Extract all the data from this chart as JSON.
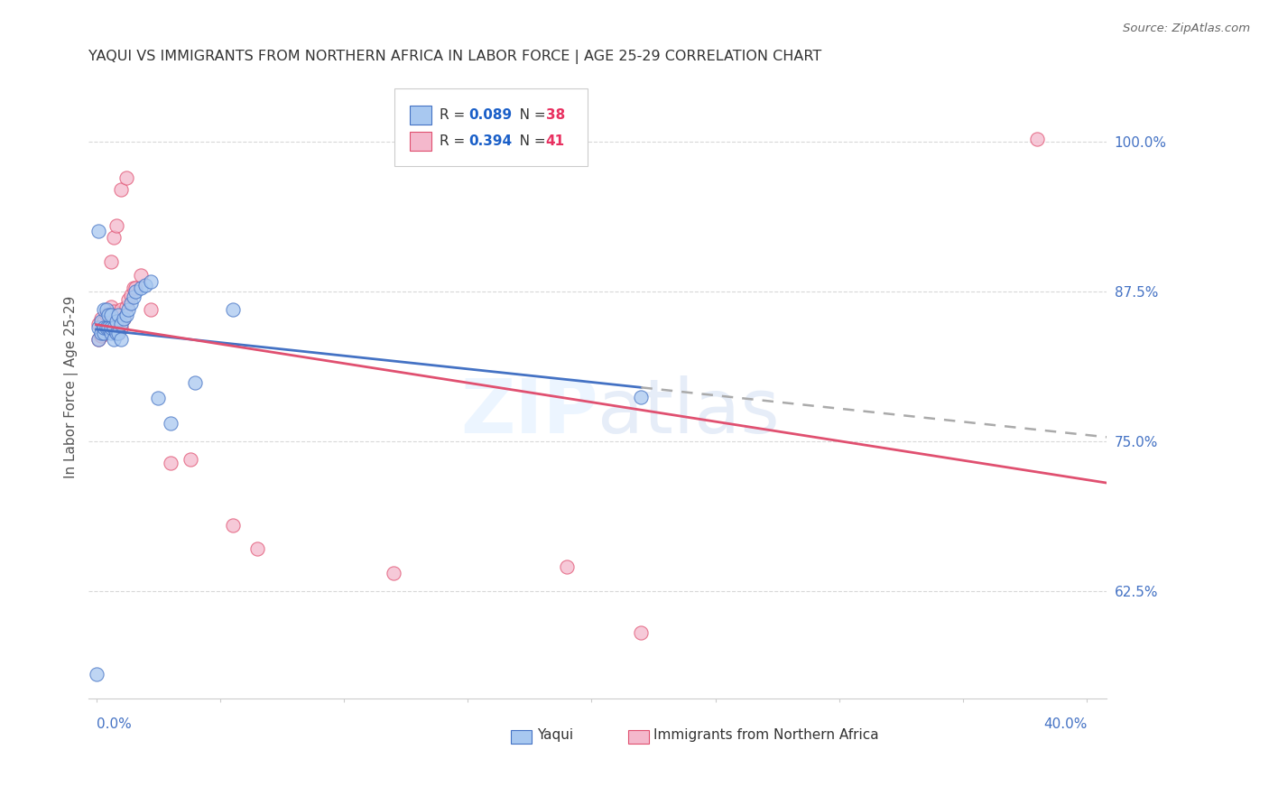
{
  "title": "YAQUI VS IMMIGRANTS FROM NORTHERN AFRICA IN LABOR FORCE | AGE 25-29 CORRELATION CHART",
  "source": "Source: ZipAtlas.com",
  "ylabel": "In Labor Force | Age 25-29",
  "xmin": -0.003,
  "xmax": 0.408,
  "ymin": 0.535,
  "ymax": 1.055,
  "yaqui_R": 0.089,
  "yaqui_N": 38,
  "imm_R": 0.394,
  "imm_N": 41,
  "yaqui_color": "#a8c8f0",
  "imm_color": "#f4b8cc",
  "yaqui_line_color": "#4472c4",
  "imm_line_color": "#e05070",
  "dashed_color": "#aaaaaa",
  "legend_R_color": "#1a5fc8",
  "legend_N_color": "#e83060",
  "background_color": "#ffffff",
  "grid_color": "#d8d8d8",
  "yaqui_x": [
    0.0,
    0.001,
    0.001,
    0.002,
    0.002,
    0.003,
    0.003,
    0.003,
    0.004,
    0.004,
    0.005,
    0.005,
    0.006,
    0.006,
    0.006,
    0.007,
    0.007,
    0.008,
    0.008,
    0.009,
    0.009,
    0.01,
    0.01,
    0.011,
    0.012,
    0.013,
    0.014,
    0.015,
    0.016,
    0.018,
    0.02,
    0.022,
    0.025,
    0.03,
    0.04,
    0.055,
    0.22,
    0.001
  ],
  "yaqui_y": [
    0.555,
    0.845,
    0.835,
    0.84,
    0.85,
    0.84,
    0.845,
    0.86,
    0.845,
    0.86,
    0.845,
    0.855,
    0.84,
    0.845,
    0.855,
    0.835,
    0.845,
    0.84,
    0.85,
    0.84,
    0.855,
    0.835,
    0.848,
    0.852,
    0.855,
    0.86,
    0.865,
    0.87,
    0.875,
    0.878,
    0.88,
    0.883,
    0.786,
    0.765,
    0.799,
    0.86,
    0.787,
    0.925
  ],
  "imm_x": [
    0.001,
    0.001,
    0.002,
    0.002,
    0.003,
    0.003,
    0.004,
    0.004,
    0.005,
    0.005,
    0.006,
    0.006,
    0.006,
    0.007,
    0.007,
    0.008,
    0.009,
    0.009,
    0.01,
    0.01,
    0.011,
    0.012,
    0.013,
    0.014,
    0.015,
    0.016,
    0.018,
    0.022,
    0.03,
    0.038,
    0.055,
    0.065,
    0.12,
    0.19,
    0.22,
    0.38,
    0.006,
    0.007,
    0.008,
    0.01,
    0.012
  ],
  "imm_y": [
    0.835,
    0.848,
    0.838,
    0.852,
    0.84,
    0.85,
    0.842,
    0.855,
    0.843,
    0.857,
    0.843,
    0.853,
    0.862,
    0.845,
    0.858,
    0.848,
    0.84,
    0.855,
    0.845,
    0.86,
    0.852,
    0.862,
    0.868,
    0.872,
    0.878,
    0.878,
    0.888,
    0.86,
    0.732,
    0.735,
    0.68,
    0.66,
    0.64,
    0.645,
    0.59,
    1.002,
    0.9,
    0.92,
    0.93,
    0.96,
    0.97
  ]
}
